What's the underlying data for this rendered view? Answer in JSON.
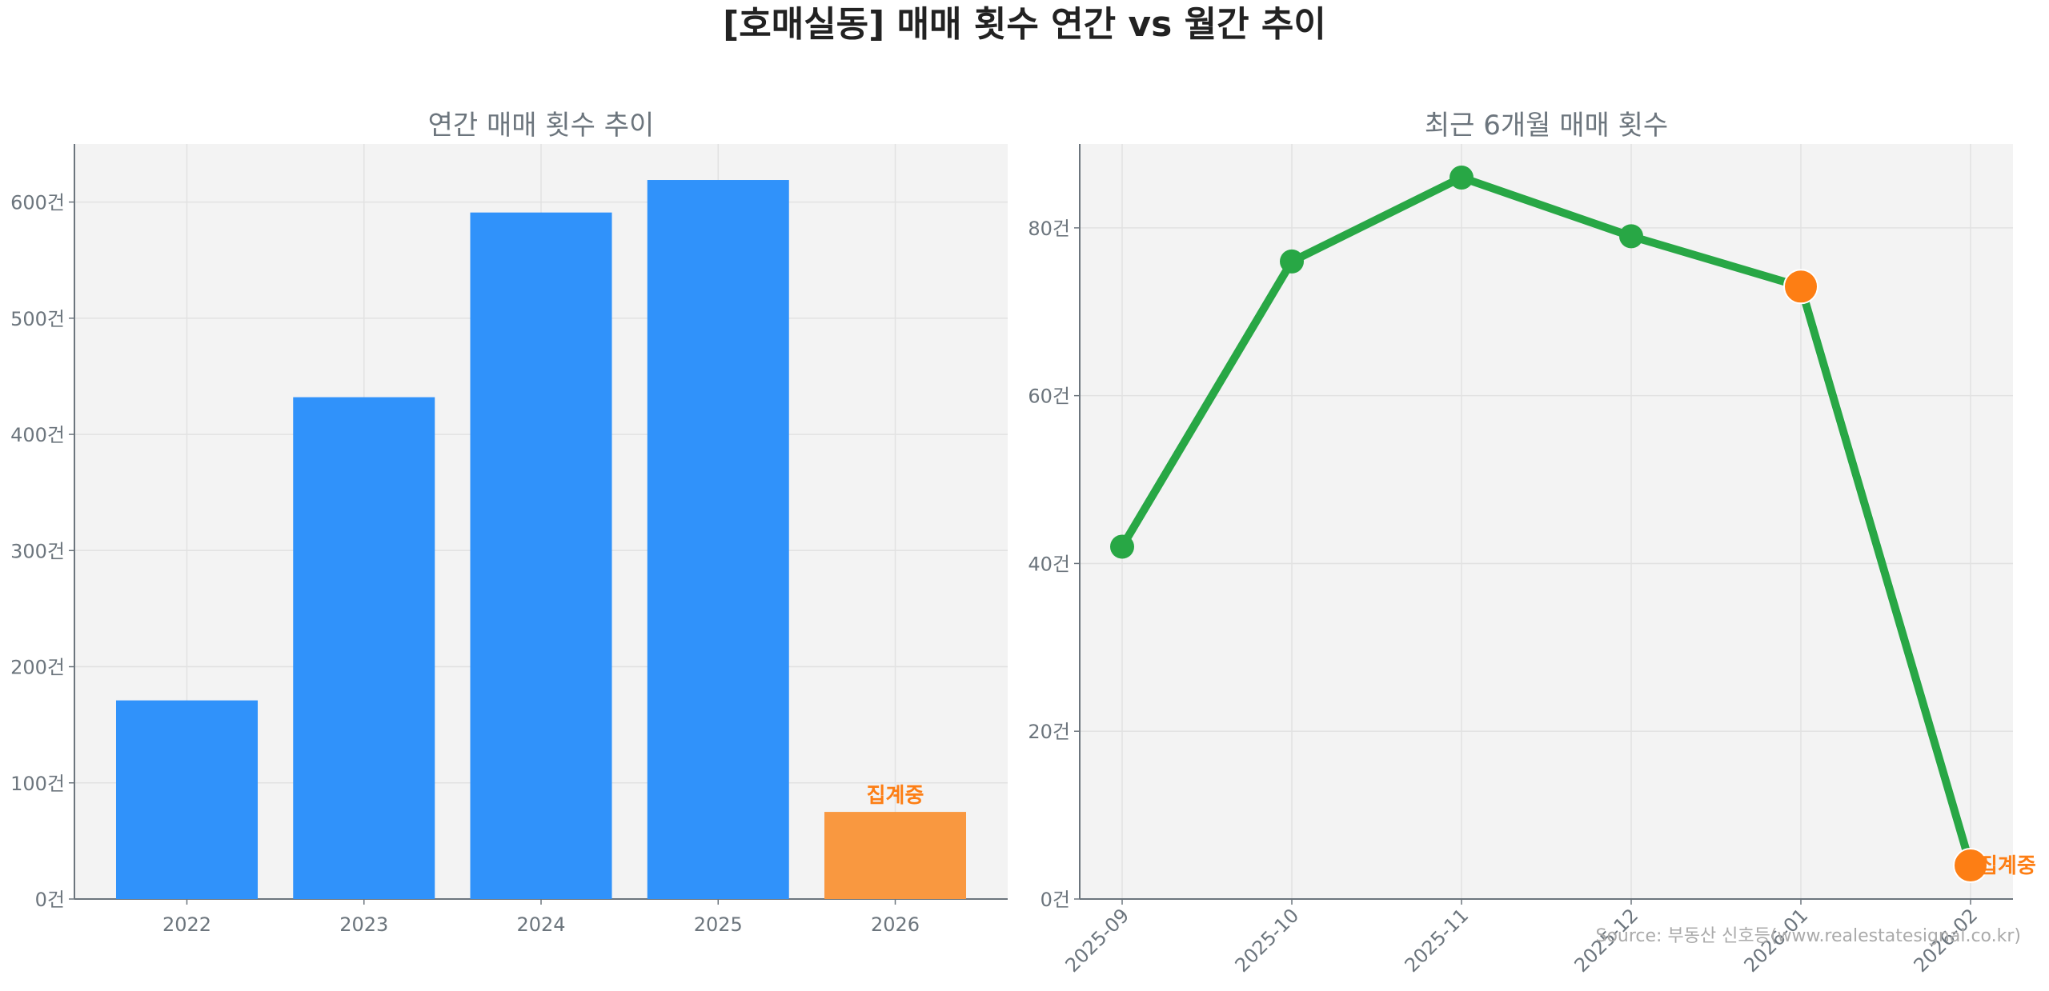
{
  "title": "[호매실동] 매매 횟수 연간 vs 월간 추이",
  "source": "Source: 부동산 신호등(www.realestatesignal.co.kr)",
  "chart_data": [
    {
      "type": "bar",
      "title": "연간 매매 횟수 추이",
      "categories": [
        "2022",
        "2023",
        "2024",
        "2025",
        "2026"
      ],
      "values": [
        171,
        432,
        591,
        619,
        75
      ],
      "colors": [
        "#3092fa",
        "#3092fa",
        "#3092fa",
        "#3092fa",
        "#f99840"
      ],
      "annotation": {
        "category": "2026",
        "text": "집계중",
        "color": "#fd7e14"
      },
      "ylim": [
        0,
        650
      ],
      "yticks": [
        0,
        100,
        200,
        300,
        400,
        500,
        600
      ],
      "ytick_suffix": "건",
      "grid": true
    },
    {
      "type": "line",
      "title": "최근 6개월 매매 횟수",
      "categories": [
        "2025-09",
        "2025-10",
        "2025-11",
        "2025-12",
        "2026-01",
        "2026-02"
      ],
      "values": [
        42,
        76,
        86,
        79,
        73,
        4
      ],
      "line_color": "#28a745",
      "highlight_color": "#fd7e14",
      "highlighted": [
        "2026-01",
        "2026-02"
      ],
      "annotation": {
        "category": "2026-02",
        "text": "집계중",
        "color": "#fd7e14"
      },
      "ylim": [
        0,
        90
      ],
      "yticks": [
        0,
        20,
        40,
        60,
        80
      ],
      "ytick_suffix": "건",
      "grid": true
    }
  ]
}
